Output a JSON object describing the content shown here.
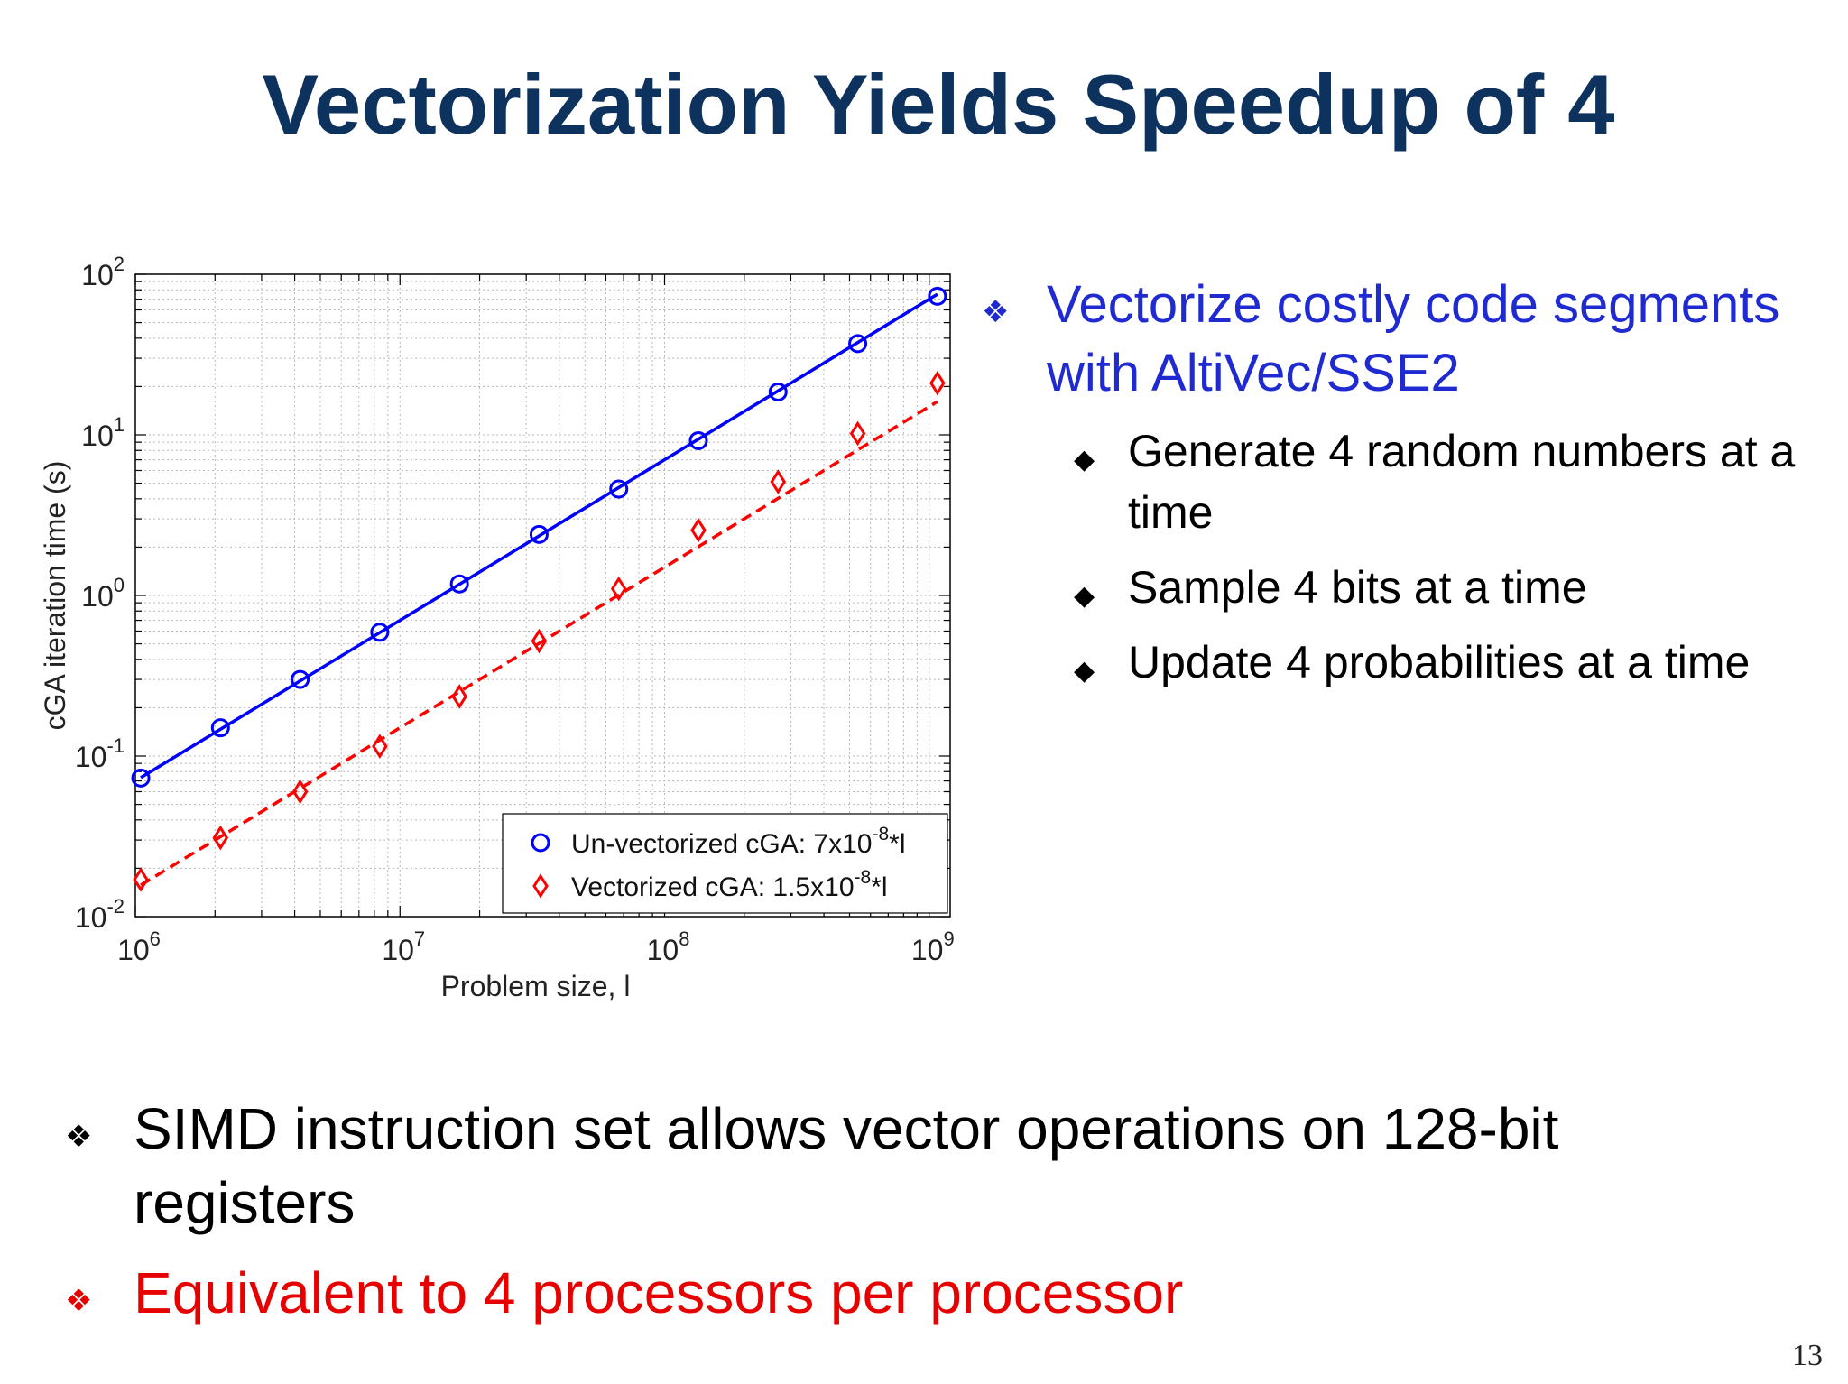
{
  "slide": {
    "title": "Vectorization Yields Speedup of 4",
    "page_number": "13",
    "right_bullets": {
      "main": "Vectorize costly code segments with AltiVec/SSE2",
      "main_color": "#1f2bd1",
      "sub": [
        "Generate 4 random numbers at a time",
        "Sample 4 bits at a time",
        "Update 4 probabilities at a time"
      ]
    },
    "bottom_bullets": [
      {
        "text": "SIMD instruction set allows vector operations on 128-bit registers",
        "color": "#000000"
      },
      {
        "text": "Equivalent to 4 processors per processor",
        "color": "#e60000"
      }
    ],
    "icons": {
      "main_bullet": "diamond-cluster-icon",
      "sub_bullet": "diamond-icon"
    }
  },
  "chart_data": {
    "type": "scatter",
    "xlabel": "Problem size, l",
    "ylabel": "cGA iteration time (s)",
    "xscale": "log",
    "yscale": "log",
    "xlim": [
      1000000.0,
      1200000000.0
    ],
    "ylim": [
      0.01,
      100
    ],
    "x_ticks": [
      {
        "base": "10",
        "exp": "6",
        "value": 1000000.0
      },
      {
        "base": "10",
        "exp": "7",
        "value": 10000000.0
      },
      {
        "base": "10",
        "exp": "8",
        "value": 100000000.0
      },
      {
        "base": "10",
        "exp": "9",
        "value": 1000000000.0
      }
    ],
    "y_ticks": [
      {
        "base": "10",
        "exp": "-2",
        "value": 0.01
      },
      {
        "base": "10",
        "exp": "-1",
        "value": 0.1
      },
      {
        "base": "10",
        "exp": "0",
        "value": 1
      },
      {
        "base": "10",
        "exp": "1",
        "value": 10
      },
      {
        "base": "10",
        "exp": "2",
        "value": 100
      }
    ],
    "grid": true,
    "legend_position": "bottom-right",
    "series": [
      {
        "name_prefix": "Un-vectorized cGA: 7x10",
        "name_exp": "-8",
        "name_suffix": "*l",
        "color": "#0000ff",
        "marker": "circle",
        "line": "solid",
        "fit_coefficient": 7e-08,
        "x": [
          1048576.0,
          2097152.0,
          4194304.0,
          8388608.0,
          16777216.0,
          33554432.0,
          67108864.0,
          134217728.0,
          268435456.0,
          536870912.0,
          1073741824.0
        ],
        "y": [
          0.073,
          0.15,
          0.3,
          0.59,
          1.18,
          2.4,
          4.6,
          9.2,
          18.5,
          37,
          73
        ]
      },
      {
        "name_prefix": "Vectorized cGA: 1.5x10",
        "name_exp": "-8",
        "name_suffix": "*l",
        "color": "#ff0000",
        "marker": "diamond",
        "line": "dashed",
        "fit_coefficient": 1.5e-08,
        "x": [
          1048576.0,
          2097152.0,
          4194304.0,
          8388608.0,
          16777216.0,
          33554432.0,
          67108864.0,
          134217728.0,
          268435456.0,
          536870912.0,
          1073741824.0
        ],
        "y": [
          0.017,
          0.031,
          0.06,
          0.115,
          0.235,
          0.52,
          1.1,
          2.55,
          5.1,
          10.2,
          21
        ]
      }
    ]
  }
}
